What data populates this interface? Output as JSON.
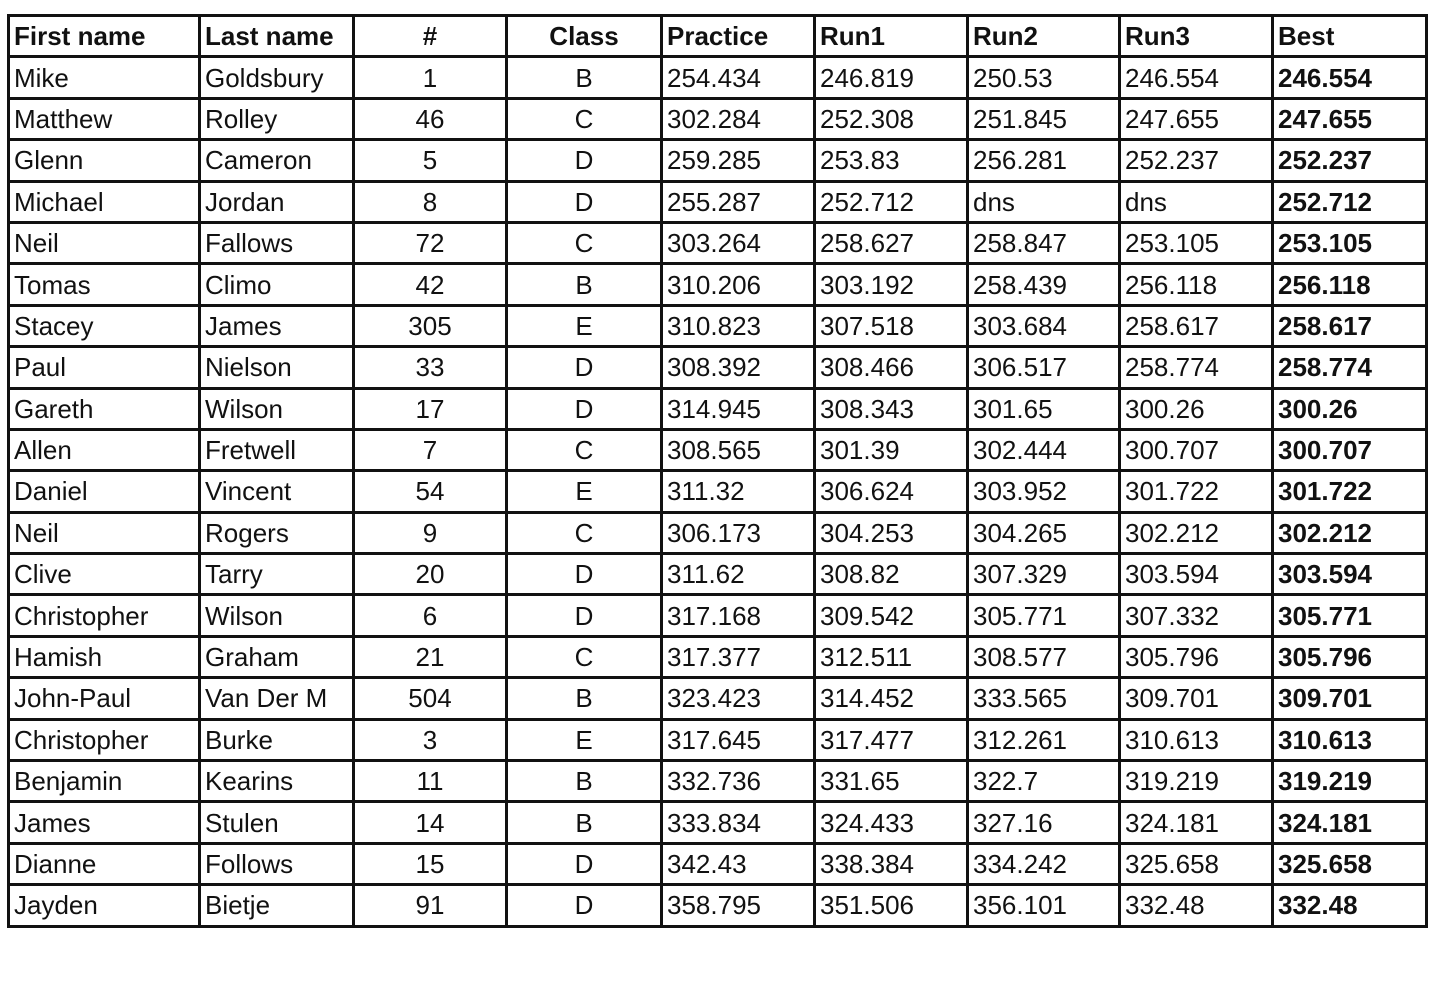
{
  "columns": [
    "First name",
    "Last name",
    "#",
    "Class",
    "Practice",
    "Run1",
    "Run2",
    "Run3",
    "Best"
  ],
  "rows": [
    [
      "Mike",
      "Goldsbury",
      "1",
      "B",
      "254.434",
      "246.819",
      "250.53",
      "246.554",
      "246.554"
    ],
    [
      "Matthew",
      "Rolley",
      "46",
      "C",
      "302.284",
      "252.308",
      "251.845",
      "247.655",
      "247.655"
    ],
    [
      "Glenn",
      "Cameron",
      "5",
      "D",
      "259.285",
      "253.83",
      "256.281",
      "252.237",
      "252.237"
    ],
    [
      "Michael",
      "Jordan",
      "8",
      "D",
      "255.287",
      "252.712",
      "dns",
      "dns",
      "252.712"
    ],
    [
      "Neil",
      "Fallows",
      "72",
      "C",
      "303.264",
      "258.627",
      "258.847",
      "253.105",
      "253.105"
    ],
    [
      "Tomas",
      "Climo",
      "42",
      "B",
      "310.206",
      "303.192",
      "258.439",
      "256.118",
      "256.118"
    ],
    [
      "Stacey",
      "James",
      "305",
      "E",
      "310.823",
      "307.518",
      "303.684",
      "258.617",
      "258.617"
    ],
    [
      "Paul",
      "Nielson",
      "33",
      "D",
      "308.392",
      "308.466",
      "306.517",
      "258.774",
      "258.774"
    ],
    [
      "Gareth",
      "Wilson",
      "17",
      "D",
      "314.945",
      "308.343",
      "301.65",
      "300.26",
      "300.26"
    ],
    [
      "Allen",
      "Fretwell",
      "7",
      "C",
      "308.565",
      "301.39",
      "302.444",
      "300.707",
      "300.707"
    ],
    [
      "Daniel",
      "Vincent",
      "54",
      "E",
      "311.32",
      "306.624",
      "303.952",
      "301.722",
      "301.722"
    ],
    [
      "Neil",
      "Rogers",
      "9",
      "C",
      "306.173",
      "304.253",
      "304.265",
      "302.212",
      "302.212"
    ],
    [
      "Clive",
      "Tarry",
      "20",
      "D",
      "311.62",
      "308.82",
      "307.329",
      "303.594",
      "303.594"
    ],
    [
      "Christopher",
      "Wilson",
      "6",
      "D",
      "317.168",
      "309.542",
      "305.771",
      "307.332",
      "305.771"
    ],
    [
      "Hamish",
      "Graham",
      "21",
      "C",
      "317.377",
      "312.511",
      "308.577",
      "305.796",
      "305.796"
    ],
    [
      "John-Paul",
      "Van Der M",
      "504",
      "B",
      "323.423",
      "314.452",
      "333.565",
      "309.701",
      "309.701"
    ],
    [
      "Christopher",
      "Burke",
      "3",
      "E",
      "317.645",
      "317.477",
      "312.261",
      "310.613",
      "310.613"
    ],
    [
      "Benjamin",
      "Kearins",
      "11",
      "B",
      "332.736",
      "331.65",
      "322.7",
      "319.219",
      "319.219"
    ],
    [
      "James",
      "Stulen",
      "14",
      "B",
      "333.834",
      "324.433",
      "327.16",
      "324.181",
      "324.181"
    ],
    [
      "Dianne",
      "Follows",
      "15",
      "D",
      "342.43",
      "338.384",
      "334.242",
      "325.658",
      "325.658"
    ],
    [
      "Jayden",
      "Bietje",
      "91",
      "D",
      "358.795",
      "351.506",
      "356.101",
      "332.48",
      "332.48"
    ]
  ]
}
